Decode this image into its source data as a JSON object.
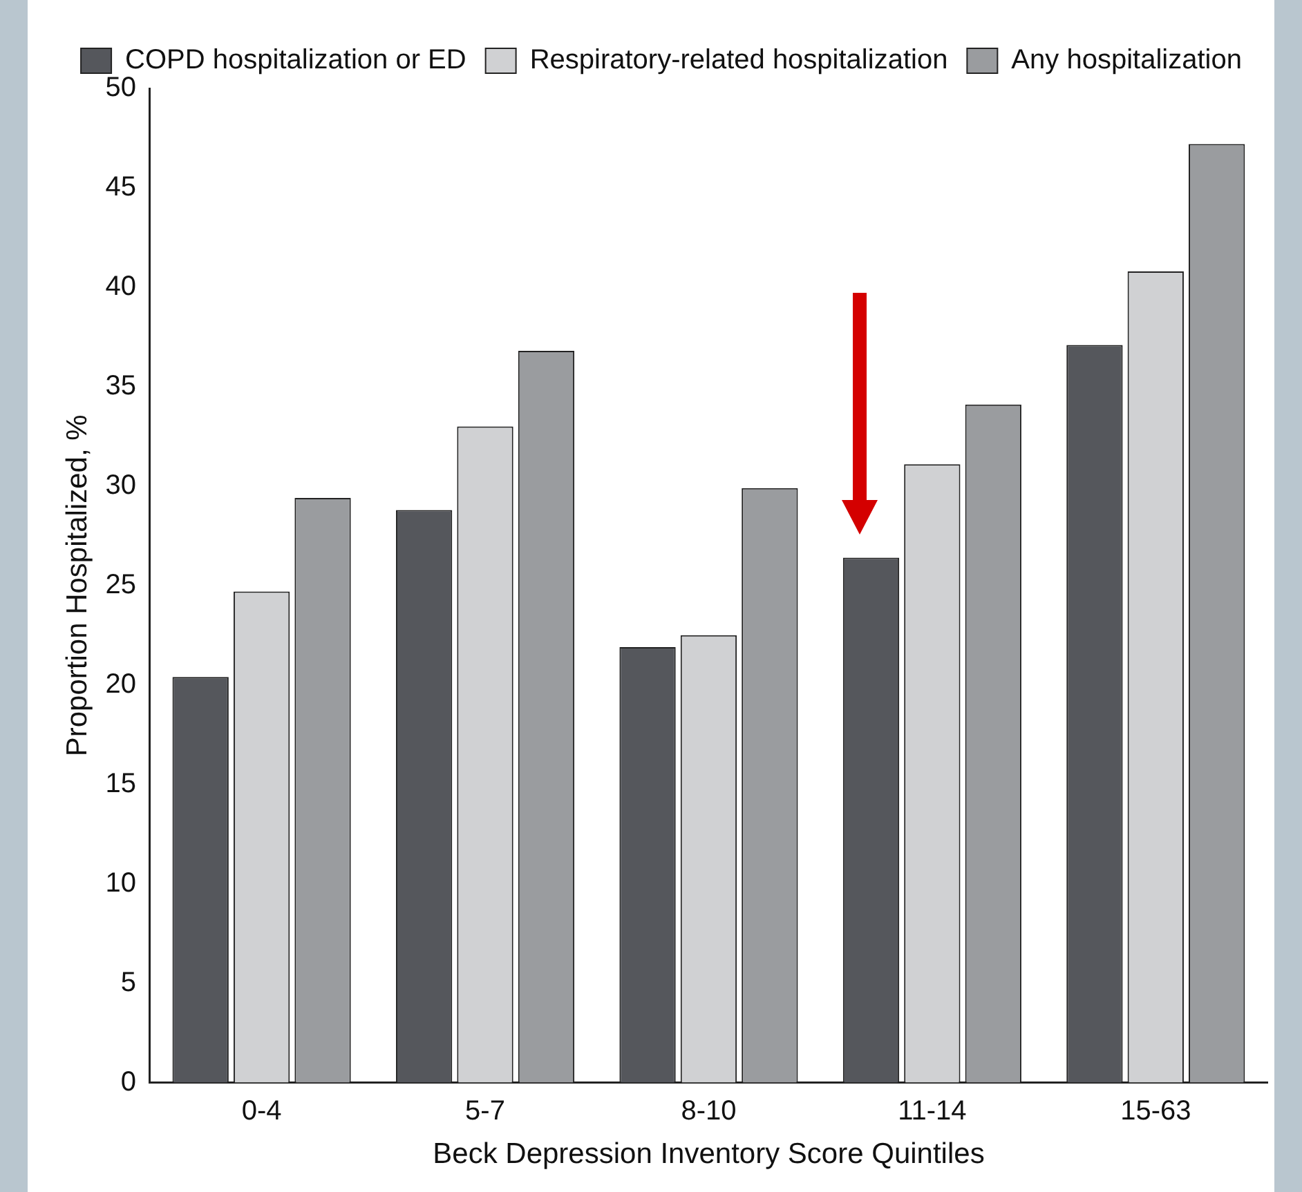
{
  "chart_data": {
    "type": "bar",
    "xlabel": "Beck Depression Inventory Score Quintiles",
    "ylabel": "Proportion Hospitalized, %",
    "categories": [
      "0-4",
      "5-7",
      "8-10",
      "11-14",
      "15-63"
    ],
    "series": [
      {
        "name": "COPD hospitalization or ED",
        "color": "#55575c",
        "values": [
          20.4,
          28.8,
          21.9,
          26.4,
          37.1
        ]
      },
      {
        "name": "Respiratory-related hospitalization",
        "color": "#d0d1d3",
        "values": [
          24.7,
          33.0,
          22.5,
          31.1,
          40.8
        ]
      },
      {
        "name": "Any hospitalization",
        "color": "#9a9c9f",
        "values": [
          29.4,
          36.8,
          29.9,
          34.1,
          47.2
        ]
      }
    ],
    "ylim": [
      0,
      50
    ],
    "yticks": [
      0,
      5,
      10,
      15,
      20,
      25,
      30,
      35,
      40,
      45,
      50
    ],
    "grid": false,
    "legend": "top"
  }
}
